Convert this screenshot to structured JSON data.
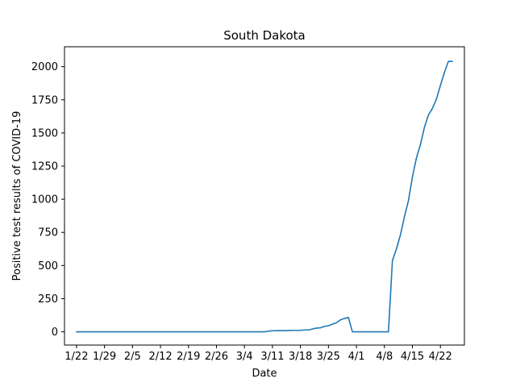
{
  "chart_data": {
    "type": "line",
    "title": "South Dakota",
    "xlabel": "Date",
    "ylabel": "Positive test results of COVID-19",
    "x_tick_labels": [
      "1/22",
      "1/29",
      "2/5",
      "2/12",
      "2/19",
      "2/26",
      "3/4",
      "3/11",
      "3/18",
      "3/25",
      "4/1",
      "4/8",
      "4/15",
      "4/22"
    ],
    "y_ticks": [
      0,
      250,
      500,
      750,
      1000,
      1250,
      1500,
      1750,
      2000
    ],
    "xlim": [
      "2020-01-19",
      "2020-04-28"
    ],
    "ylim": [
      -100,
      2150
    ],
    "grid": false,
    "series": [
      {
        "color": "#1f77b4",
        "x": [
          "2020-01-22",
          "2020-01-29",
          "2020-02-05",
          "2020-02-12",
          "2020-02-19",
          "2020-02-26",
          "2020-03-04",
          "2020-03-09",
          "2020-03-10",
          "2020-03-11",
          "2020-03-12",
          "2020-03-13",
          "2020-03-14",
          "2020-03-15",
          "2020-03-16",
          "2020-03-17",
          "2020-03-18",
          "2020-03-19",
          "2020-03-20",
          "2020-03-21",
          "2020-03-22",
          "2020-03-23",
          "2020-03-24",
          "2020-03-25",
          "2020-03-26",
          "2020-03-27",
          "2020-03-28",
          "2020-03-29",
          "2020-03-30",
          "2020-03-31",
          "2020-04-01",
          "2020-04-02",
          "2020-04-03",
          "2020-04-04",
          "2020-04-05",
          "2020-04-06",
          "2020-04-07",
          "2020-04-08",
          "2020-04-09",
          "2020-04-10",
          "2020-04-11",
          "2020-04-12",
          "2020-04-13",
          "2020-04-14",
          "2020-04-15",
          "2020-04-16",
          "2020-04-17",
          "2020-04-18",
          "2020-04-19",
          "2020-04-20",
          "2020-04-21",
          "2020-04-22",
          "2020-04-23",
          "2020-04-24",
          "2020-04-25"
        ],
        "y": [
          0,
          0,
          0,
          0,
          0,
          0,
          0,
          0,
          5,
          8,
          9,
          9,
          9,
          10,
          11,
          11,
          11,
          14,
          14,
          21,
          28,
          30,
          41,
          46,
          58,
          68,
          90,
          101,
          108,
          0,
          0,
          0,
          0,
          0,
          0,
          0,
          0,
          0,
          0,
          536,
          626,
          730,
          868,
          988,
          1168,
          1311,
          1411,
          1542,
          1635,
          1685,
          1755,
          1858,
          1956,
          2040,
          2040
        ]
      }
    ]
  }
}
